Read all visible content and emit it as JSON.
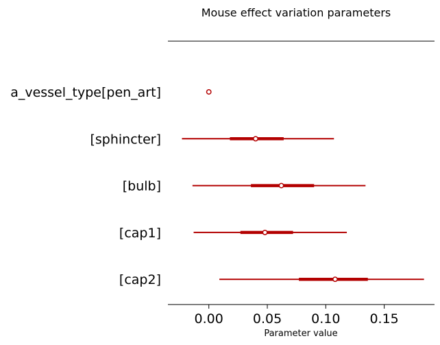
{
  "chart_data": {
    "type": "forest",
    "title": "Mouse effect variation parameters",
    "xlabel": "Parameter value",
    "xlim": [
      -0.035,
      0.193
    ],
    "xticks": [
      0.0,
      0.05,
      0.1,
      0.15
    ],
    "xtick_labels": [
      "0.00",
      "0.05",
      "0.10",
      "0.15"
    ],
    "color": "#b30000",
    "categories": [
      "a_vessel_type[pen_art]",
      "[sphincter]",
      "[bulb]",
      "[cap1]",
      "[cap2]"
    ],
    "rows": [
      {
        "label": "a_vessel_type[pen_art]",
        "median": 0.0,
        "hdi_low": null,
        "hdi_high": null,
        "iqr_low": null,
        "iqr_high": null
      },
      {
        "label": "[sphincter]",
        "median": 0.04,
        "hdi_low": -0.023,
        "hdi_high": 0.107,
        "iqr_low": 0.018,
        "iqr_high": 0.064
      },
      {
        "label": "[bulb]",
        "median": 0.062,
        "hdi_low": -0.014,
        "hdi_high": 0.134,
        "iqr_low": 0.036,
        "iqr_high": 0.09
      },
      {
        "label": "[cap1]",
        "median": 0.048,
        "hdi_low": -0.013,
        "hdi_high": 0.118,
        "iqr_low": 0.027,
        "iqr_high": 0.072
      },
      {
        "label": "[cap2]",
        "median": 0.108,
        "hdi_low": 0.009,
        "hdi_high": 0.184,
        "iqr_low": 0.077,
        "iqr_high": 0.136
      }
    ]
  }
}
